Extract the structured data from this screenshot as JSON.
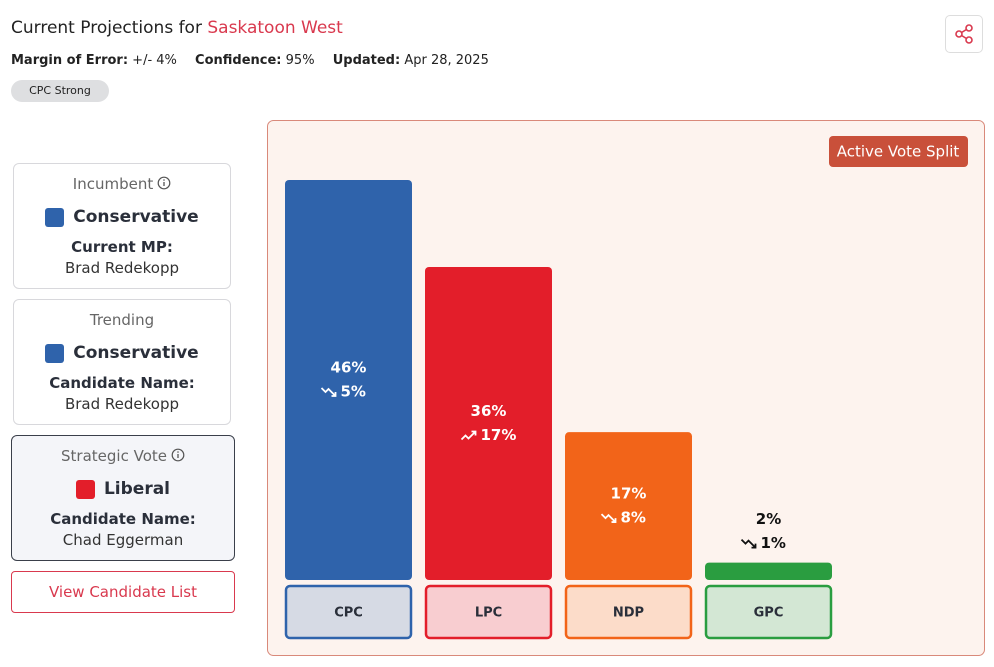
{
  "header": {
    "title": "Current Projections for",
    "riding": "Saskatoon West",
    "margin_label": "Margin of Error:",
    "margin_value": "+/- 4%",
    "confidence_label": "Confidence:",
    "confidence_value": "95%",
    "updated_label": "Updated:",
    "updated_value": "Apr 28, 2025",
    "badge": "CPC Strong"
  },
  "cards": [
    {
      "title": "Incumbent",
      "party": "Conservative",
      "party_color": "#2f63ab",
      "label": "Current MP:",
      "name": "Brad Redekopp"
    },
    {
      "title": "Trending",
      "party": "Conservative",
      "party_color": "#2f63ab",
      "label": "Candidate Name:",
      "name": "Brad Redekopp"
    },
    {
      "title": "Strategic Vote",
      "party": "Liberal",
      "party_color": "#e31e2a",
      "label": "Candidate Name:",
      "name": "Chad Eggerman"
    }
  ],
  "button": "View Candidate List",
  "chart_data": {
    "type": "bar",
    "badge": "Active Vote Split",
    "categories": [
      "CPC",
      "LPC",
      "NDP",
      "GPC"
    ],
    "values": [
      46,
      36,
      17,
      2
    ],
    "value_labels": [
      "46%",
      "36%",
      "17%",
      "2%"
    ],
    "changes": [
      5,
      17,
      8,
      1
    ],
    "change_labels": [
      "5%",
      "17%",
      "8%",
      "1%"
    ],
    "trends": [
      "down",
      "up",
      "down",
      "down"
    ],
    "colors": [
      "#2f63ab",
      "#e31e2a",
      "#f26419",
      "#2a9d40"
    ],
    "box_fills": [
      "#d6dae4",
      "#f8cdd0",
      "#fcdcc9",
      "#d3e7d4"
    ]
  }
}
